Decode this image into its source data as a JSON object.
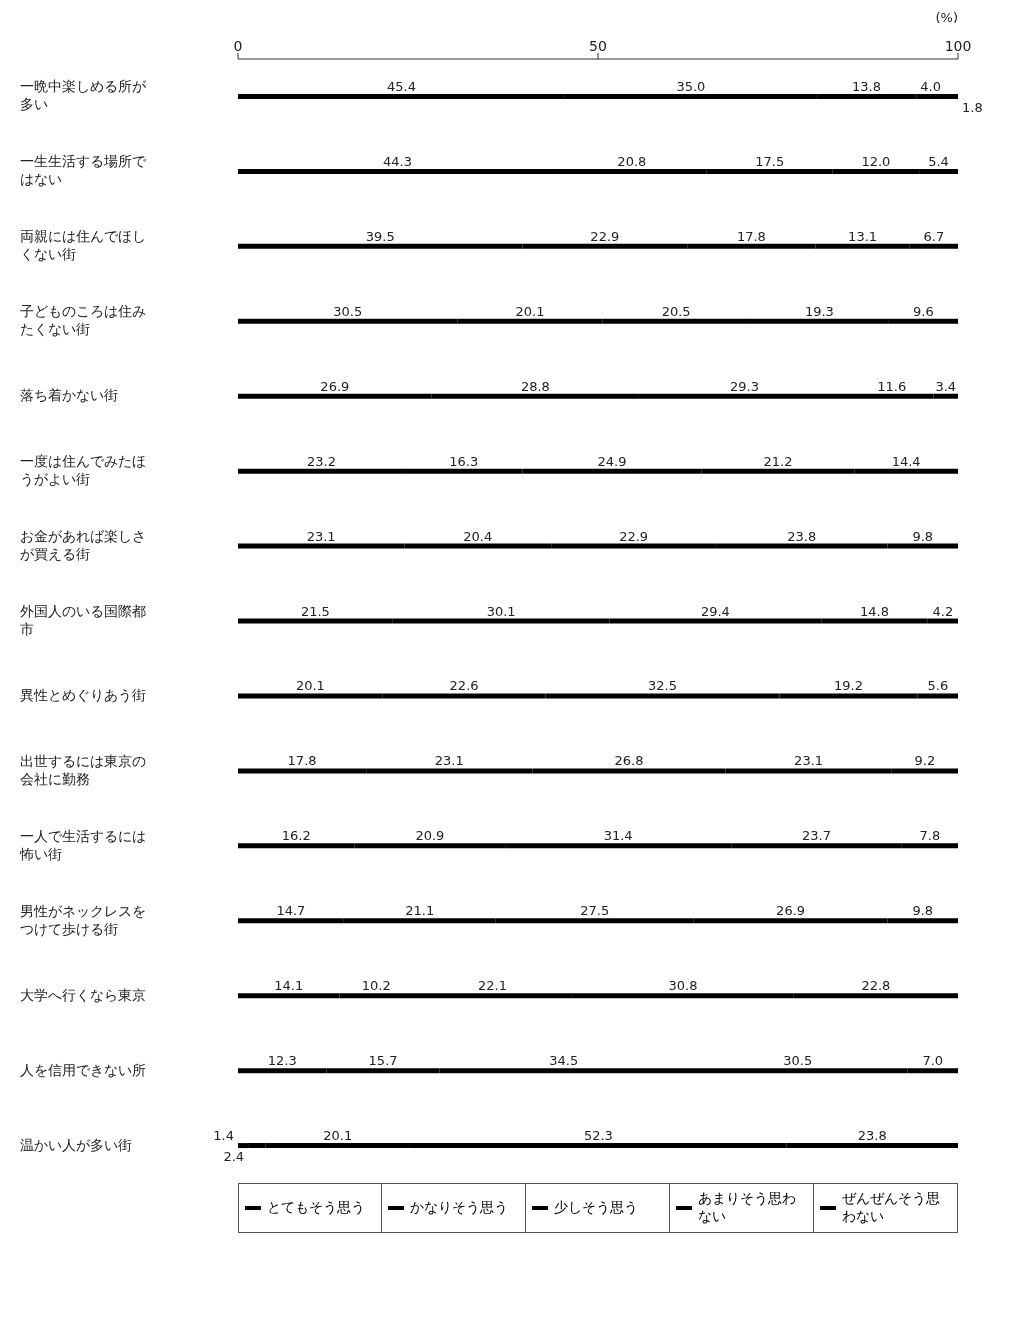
{
  "chart_data": {
    "type": "bar",
    "orientation": "horizontal",
    "stacked": true,
    "legend": "bottom",
    "xlabel": "(%)",
    "xlim": [
      0,
      100
    ],
    "xticks": [
      0,
      50,
      100
    ],
    "categories": [
      "一晩中楽しめる所が多い",
      "一生生活する場所ではない",
      "両親には住んでほしくない街",
      "子どものころは住みたくない街",
      "落ち着かない街",
      "一度は住んでみたほうがよい街",
      "お金があれば楽しさが買える街",
      "外国人のいる国際都市",
      "異性とめぐりあう街",
      "出世するには東京の会社に勤務",
      "一人で生活するには怖い街",
      "男性がネックレスをつけて歩ける街",
      "大学へ行くなら東京",
      "人を信用できない所",
      "温かい人が多い街"
    ],
    "series": [
      {
        "name": "とてもそう思う",
        "color": "#000000",
        "values": [
          45.4,
          44.3,
          39.5,
          30.5,
          26.9,
          23.2,
          23.1,
          21.5,
          20.1,
          17.8,
          16.2,
          14.7,
          14.1,
          12.3,
          1.4
        ],
        "value_labels": [
          "45.4",
          "44.3",
          "39.5",
          "30.5",
          "26.9",
          "23.2",
          "23.1",
          "21.5",
          "20.1",
          "17.8",
          "16.2",
          "14.7",
          "14.1",
          "12.3",
          "1.4"
        ]
      },
      {
        "name": "かなりそう思う",
        "color": "#000000",
        "values": [
          35.0,
          20.8,
          22.9,
          20.1,
          28.8,
          16.3,
          20.4,
          30.1,
          22.6,
          23.1,
          20.9,
          21.1,
          10.2,
          15.7,
          2.4
        ],
        "value_labels": [
          "35.0",
          "20.8",
          "22.9",
          "20.1",
          "28.8",
          "16.3",
          "20.4",
          "30.1",
          "22.6",
          "23.1",
          "20.9",
          "21.1",
          "10.2",
          "15.7",
          "2.4"
        ]
      },
      {
        "name": "少しそう思う",
        "color": "#000000",
        "values": [
          13.8,
          17.5,
          17.8,
          20.5,
          29.3,
          24.9,
          22.9,
          29.4,
          32.5,
          26.8,
          31.4,
          27.5,
          22.1,
          34.5,
          20.1
        ],
        "value_labels": [
          "13.8",
          "17.5",
          "17.8",
          "20.5",
          "29.3",
          "24.9",
          "22.9",
          "29.4",
          "32.5",
          "26.8",
          "31.4",
          "27.5",
          "22.1",
          "34.5",
          "20.1"
        ]
      },
      {
        "name": "あまりそう思わない",
        "color": "#000000",
        "values": [
          4.0,
          12.0,
          13.1,
          19.3,
          11.6,
          21.2,
          23.8,
          14.8,
          19.2,
          23.1,
          23.7,
          26.9,
          30.8,
          30.5,
          52.3
        ],
        "value_labels": [
          "4.0",
          "12.0",
          "13.1",
          "19.3",
          "11.6",
          "21.2",
          "23.8",
          "14.8",
          "19.2",
          "23.1",
          "23.7",
          "26.9",
          "30.8",
          "30.5",
          "52.3"
        ]
      },
      {
        "name": "ぜんぜんそう思わない",
        "color": "#000000",
        "values": [
          1.8,
          5.4,
          6.7,
          9.6,
          3.4,
          14.4,
          9.8,
          4.2,
          5.6,
          9.2,
          7.8,
          9.8,
          22.8,
          7.0,
          23.8
        ],
        "value_labels": [
          "1.8",
          "5.4",
          "6.7",
          "9.6",
          "3.4",
          "14.4",
          "9.8",
          "4.2",
          "5.6",
          "9.2",
          "7.8",
          "9.8",
          "22.8",
          "7.0",
          "23.8"
        ]
      }
    ]
  }
}
